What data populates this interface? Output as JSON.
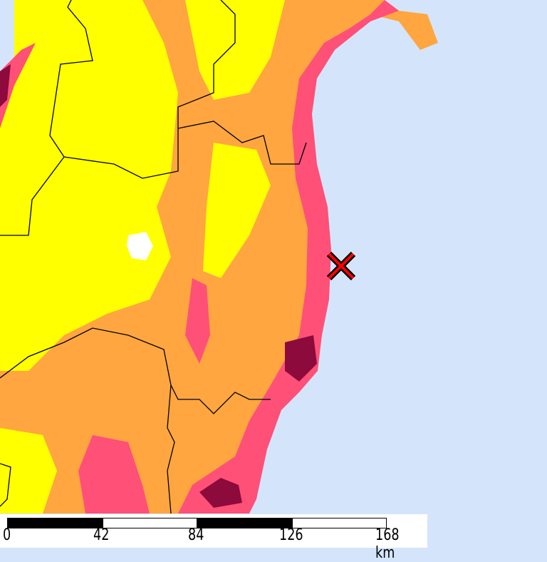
{
  "map": {
    "colors": {
      "sea": "#d4e5fb",
      "low": "#ffff00",
      "mid": "#ffa640",
      "high": "#ff5078",
      "highest": "#8c0a3c",
      "epicenter": "#ff0000"
    },
    "epicenter_icon": "x-mark-icon"
  },
  "scale_bar": {
    "labels": [
      "0",
      "42",
      "84",
      "126",
      "168 km"
    ]
  }
}
